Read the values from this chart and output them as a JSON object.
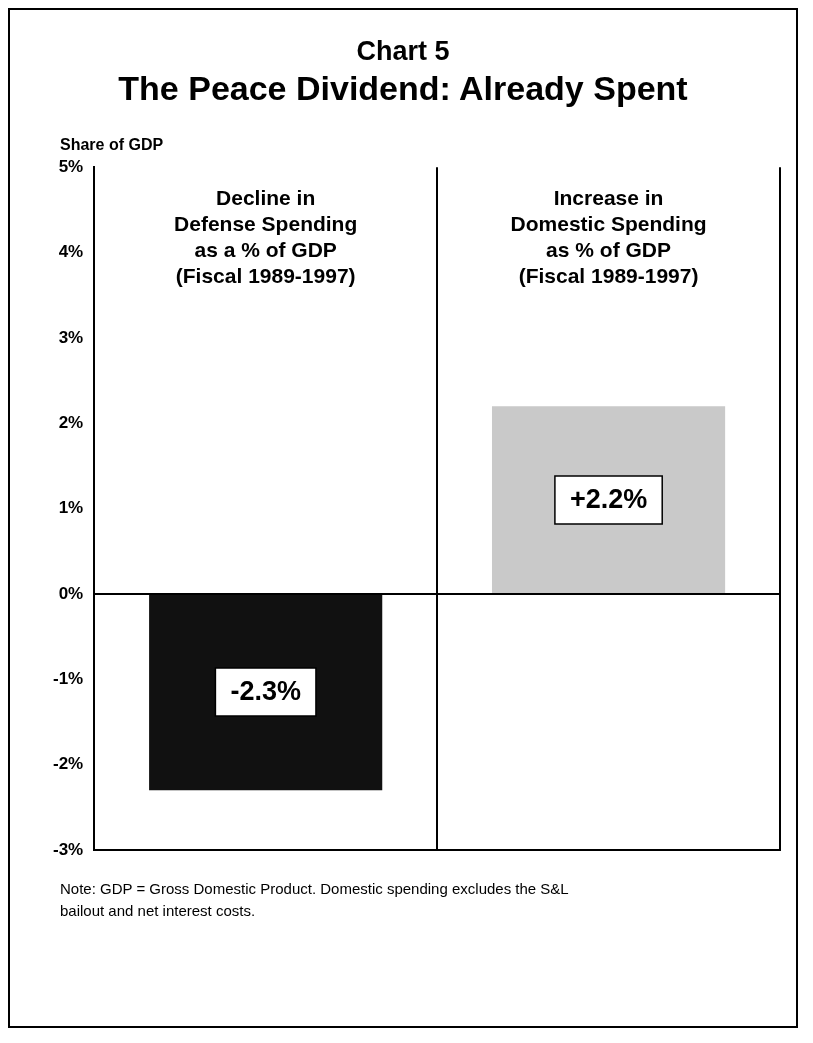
{
  "chart_data": {
    "type": "bar",
    "title": "Chart 5",
    "subtitle": "The Peace Dividend: Already Spent",
    "ylabel": "Share of GDP",
    "categories": [
      "Decline in\nDefense Spending\nas a % of GDP\n(Fiscal 1989-1997)",
      "Increase in\nDomestic Spending\nas % of GDP\n(Fiscal 1989-1997)"
    ],
    "values": [
      -2.3,
      2.2
    ],
    "colors": [
      "#111111",
      "#c9c9c9"
    ],
    "value_labels": [
      "-2.3%",
      "+2.2%"
    ],
    "ylim": [
      -3,
      5
    ],
    "yticks": [
      {
        "value": 5,
        "label": "5%"
      },
      {
        "value": 4,
        "label": "4%"
      },
      {
        "value": 3,
        "label": "3%"
      },
      {
        "value": 2,
        "label": "2%"
      },
      {
        "value": 1,
        "label": "1%"
      },
      {
        "value": 0,
        "label": "0%"
      },
      {
        "value": -1,
        "label": "-1%"
      },
      {
        "value": -2,
        "label": "-2%"
      },
      {
        "value": -3,
        "label": "-3%"
      }
    ],
    "ref_lines": [
      {
        "axis": "y",
        "value": 0,
        "color": "#000000"
      }
    ],
    "grid": "x",
    "annotations": [
      "Note: GDP = Gross Domestic Product. Domestic spending excludes the S&L bailout and net interest costs."
    ]
  }
}
